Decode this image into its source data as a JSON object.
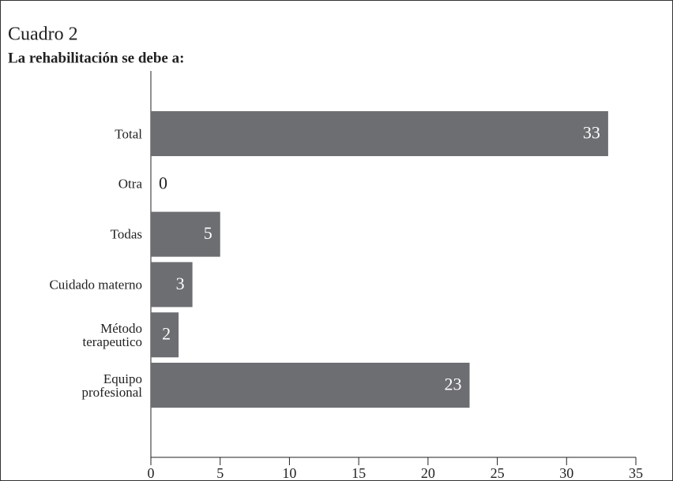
{
  "chart_data": {
    "type": "bar",
    "orientation": "horizontal",
    "title": "Cuadro 2",
    "subtitle": "La rehabilitación se debe a:",
    "categories": [
      "Total",
      "Otra",
      "Todas",
      "Cuidado materno",
      "Método\nterapeutico",
      "Equipo\nprofesional"
    ],
    "values": [
      33,
      0,
      5,
      3,
      2,
      23
    ],
    "color": "#6d6e71",
    "xlim": [
      0,
      35
    ],
    "xticks": [
      0,
      5,
      10,
      15,
      20,
      25,
      30,
      35
    ]
  }
}
